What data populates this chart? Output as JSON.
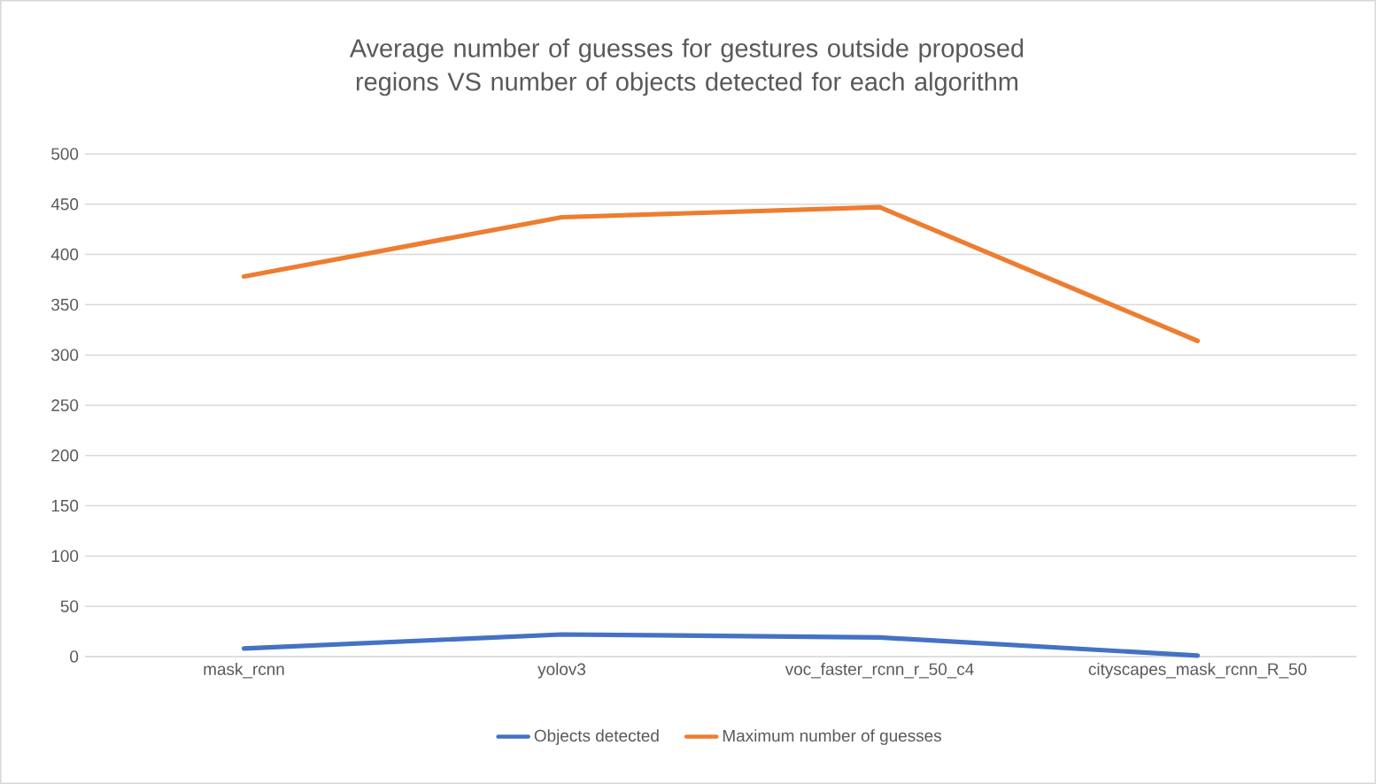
{
  "chart_data": {
    "type": "line",
    "title": "Average number of guesses for gestures outside proposed regions VS number of objects detected for each algorithm",
    "categories": [
      "mask_rcnn",
      "yolov3",
      "voc_faster_rcnn_r_50_c4",
      "cityscapes_mask_rcnn_R_50"
    ],
    "series": [
      {
        "name": "Objects detected",
        "color": "#4472c4",
        "values": [
          8,
          22,
          19,
          1
        ]
      },
      {
        "name": "Maximum number of guesses",
        "color": "#ed7d31",
        "values": [
          378,
          437,
          447,
          314
        ]
      }
    ],
    "ylim": [
      0,
      500
    ],
    "yticks": [
      0,
      50,
      100,
      150,
      200,
      250,
      300,
      350,
      400,
      450,
      500
    ],
    "grid": "y",
    "legend": "bottom",
    "marker": "none",
    "line_style": "solid"
  }
}
